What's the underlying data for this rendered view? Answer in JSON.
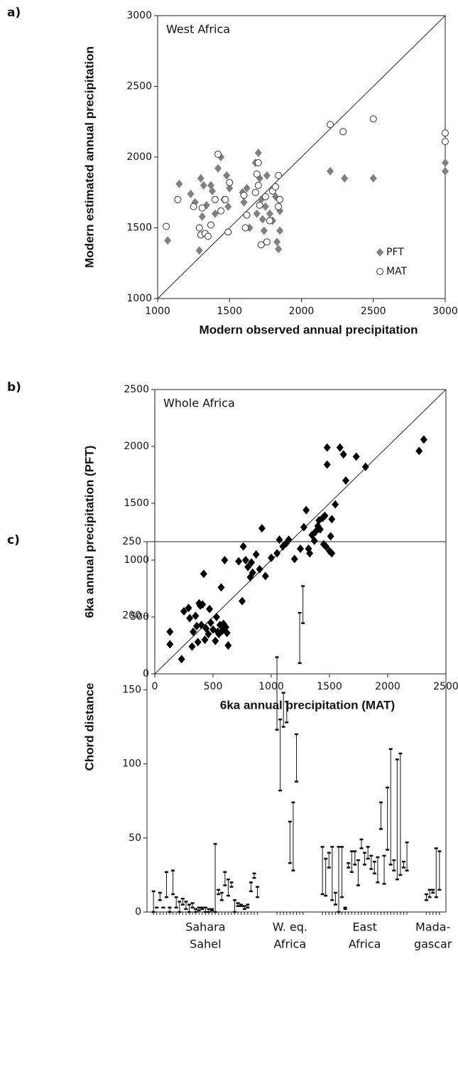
{
  "chart_data": [
    {
      "type": "scatter",
      "panel_label": "a)",
      "annotation": "West Africa",
      "xlabel": "Modern observed annual precipitation",
      "ylabel": "Modern estimated annual precipitation",
      "xlim": [
        1000,
        3000
      ],
      "ylim": [
        1000,
        3000
      ],
      "xticks": [
        1000,
        1500,
        2000,
        2500,
        3000
      ],
      "yticks": [
        1000,
        1500,
        2000,
        2500,
        3000
      ],
      "diagonal": true,
      "legend": "lower right",
      "series": [
        {
          "name": "PFT",
          "color": "#808080",
          "marker": "diamond",
          "x": [
            1070,
            1150,
            1230,
            1260,
            1290,
            1300,
            1310,
            1320,
            1340,
            1370,
            1380,
            1400,
            1420,
            1440,
            1460,
            1480,
            1490,
            1500,
            1590,
            1600,
            1620,
            1640,
            1680,
            1690,
            1700,
            1710,
            1720,
            1730,
            1740,
            1750,
            1760,
            1780,
            1800,
            1820,
            1830,
            1840,
            1850,
            1850,
            2200,
            2300,
            2500,
            3000,
            3000
          ],
          "values": [
            1410,
            1810,
            1740,
            1680,
            1340,
            1850,
            1580,
            1800,
            1660,
            1800,
            1760,
            1600,
            1920,
            2000,
            1700,
            1870,
            1650,
            1780,
            1750,
            1680,
            1780,
            1500,
            1960,
            1600,
            2030,
            1850,
            1700,
            1560,
            1480,
            1650,
            1870,
            1600,
            1550,
            1720,
            1400,
            1350,
            1620,
            1480,
            1900,
            1850,
            1850,
            1960,
            1900
          ]
        },
        {
          "name": "MAT",
          "color": "#333333",
          "marker": "circle",
          "x": [
            1060,
            1140,
            1250,
            1290,
            1300,
            1310,
            1330,
            1350,
            1370,
            1400,
            1420,
            1440,
            1470,
            1490,
            1500,
            1600,
            1610,
            1620,
            1680,
            1690,
            1700,
            1700,
            1710,
            1720,
            1750,
            1760,
            1780,
            1800,
            1820,
            1840,
            1840,
            1850,
            2200,
            2290,
            2500,
            3000,
            3000
          ],
          "values": [
            1510,
            1700,
            1650,
            1500,
            1450,
            1640,
            1460,
            1440,
            1520,
            1700,
            2020,
            1620,
            1700,
            1470,
            1820,
            1730,
            1500,
            1590,
            1750,
            1880,
            1960,
            1800,
            1660,
            1380,
            1720,
            1400,
            1550,
            1760,
            1790,
            1870,
            1650,
            1700,
            2230,
            2180,
            2270,
            2170,
            2110
          ]
        }
      ]
    },
    {
      "type": "scatter",
      "panel_label": "b)",
      "annotation": "Whole Africa",
      "xlabel": "6ka annual precipitation (MAT)",
      "ylabel": "6ka annual precipitation (PFT)",
      "xlim": [
        0,
        2500
      ],
      "ylim": [
        0,
        2500
      ],
      "xticks": [
        0,
        500,
        1000,
        1500,
        2000,
        2500
      ],
      "yticks": [
        0,
        500,
        1000,
        1500,
        2000,
        2500
      ],
      "diagonal": true,
      "series": [
        {
          "color": "#000000",
          "marker": "diamond",
          "x": [
            130,
            130,
            230,
            250,
            290,
            300,
            320,
            330,
            350,
            360,
            370,
            380,
            390,
            400,
            410,
            420,
            430,
            440,
            460,
            470,
            480,
            500,
            520,
            530,
            540,
            550,
            560,
            570,
            580,
            590,
            600,
            610,
            620,
            630,
            720,
            750,
            760,
            780,
            800,
            820,
            830,
            840,
            870,
            900,
            920,
            950,
            1000,
            1050,
            1070,
            1100,
            1130,
            1150,
            1200,
            1250,
            1280,
            1300,
            1320,
            1330,
            1350,
            1370,
            1380,
            1400,
            1410,
            1420,
            1440,
            1450,
            1460,
            1470,
            1480,
            1480,
            1500,
            1510,
            1520,
            1520,
            1550,
            1590,
            1620,
            1640,
            1730,
            1810,
            2270,
            2310
          ],
          "values": [
            370,
            260,
            130,
            550,
            580,
            490,
            240,
            370,
            510,
            420,
            280,
            620,
            600,
            430,
            610,
            880,
            300,
            400,
            350,
            570,
            450,
            390,
            290,
            500,
            370,
            350,
            430,
            760,
            380,
            440,
            1000,
            410,
            360,
            250,
            990,
            640,
            1120,
            1000,
            940,
            850,
            980,
            890,
            1050,
            920,
            1280,
            860,
            1020,
            1060,
            1180,
            1120,
            1150,
            1180,
            1010,
            1100,
            1290,
            1440,
            1100,
            1060,
            1220,
            1170,
            1250,
            1300,
            1350,
            1270,
            1370,
            1140,
            1390,
            1120,
            1840,
            1990,
            1080,
            1210,
            1360,
            1060,
            1490,
            1990,
            1930,
            1700,
            1910,
            1820,
            1960,
            2060
          ]
        }
      ]
    },
    {
      "type": "range",
      "panel_label": "c)",
      "ylabel": "Chord distance",
      "ylim": [
        0,
        250
      ],
      "yticks": [
        0,
        50,
        100,
        150,
        200,
        250
      ],
      "groups": [
        {
          "label": [
            "Sahara",
            "Sahel"
          ],
          "low": [
            0,
            3,
            8,
            3,
            10,
            0,
            12,
            3,
            0,
            5,
            2,
            0,
            3,
            0,
            1,
            2,
            0,
            0,
            1,
            0,
            12,
            8,
            18,
            11,
            17,
            0,
            4,
            4,
            2,
            3,
            14,
            23,
            10
          ],
          "high": [
            14,
            3,
            13,
            3,
            27,
            3,
            28,
            10,
            7,
            9,
            7,
            5,
            6,
            2,
            3,
            3,
            3,
            2,
            2,
            46,
            15,
            13,
            27,
            22,
            20,
            8,
            6,
            5,
            4,
            5,
            20,
            26,
            17
          ]
        },
        {
          "label": [
            "W. eq.",
            "Africa"
          ],
          "low": [
            123,
            82,
            125,
            128,
            33,
            28,
            88,
            168,
            195
          ],
          "high": [
            172,
            130,
            148,
            142,
            61,
            74,
            120,
            202,
            220
          ]
        },
        {
          "label": [
            "East",
            "Africa"
          ],
          "low": [
            12,
            11,
            30,
            8,
            5,
            0,
            10,
            2,
            30,
            27,
            32,
            18,
            43,
            32,
            36,
            29,
            26,
            20,
            56,
            19,
            42,
            32,
            28,
            22,
            25,
            30,
            28
          ],
          "high": [
            44,
            36,
            40,
            44,
            13,
            44,
            44,
            3,
            33,
            41,
            41,
            35,
            49,
            40,
            44,
            38,
            34,
            37,
            74,
            38,
            84,
            110,
            35,
            103,
            107,
            34,
            47
          ]
        },
        {
          "label": [
            "Mada-",
            "gascar"
          ],
          "low": [
            8,
            10,
            13,
            10,
            15
          ],
          "high": [
            12,
            15,
            15,
            43,
            41
          ]
        }
      ]
    }
  ]
}
